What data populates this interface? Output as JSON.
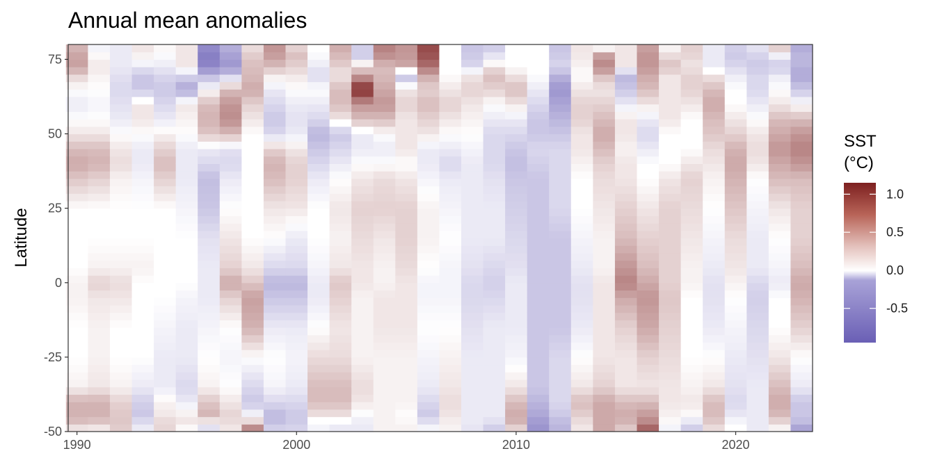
{
  "chart_data": {
    "type": "heatmap",
    "title": "Annual mean anomalies",
    "xlabel": "",
    "ylabel": "Latitude",
    "x_ticks": [
      1990,
      2000,
      2010,
      2020
    ],
    "x_tick_labels": [
      "1990",
      "2000",
      "2010",
      "2020"
    ],
    "y_ticks": [
      -50,
      -25,
      0,
      25,
      50,
      75
    ],
    "y_tick_labels": [
      "-50",
      "-25",
      "0",
      "25",
      "50",
      "75"
    ],
    "xlim": [
      1989.6,
      2023.5
    ],
    "ylim": [
      -50,
      80
    ],
    "years": [
      1990,
      1991,
      1992,
      1993,
      1994,
      1995,
      1996,
      1997,
      1998,
      1999,
      2000,
      2001,
      2002,
      2003,
      2004,
      2005,
      2006,
      2007,
      2008,
      2009,
      2010,
      2011,
      2012,
      2013,
      2014,
      2015,
      2016,
      2017,
      2018,
      2019,
      2020,
      2021,
      2022,
      2023
    ],
    "lat_knots": [
      -50,
      -47.5,
      -45,
      -40,
      -35,
      -25,
      -15,
      -5,
      0,
      5,
      15,
      25,
      35,
      40,
      45,
      50,
      55,
      60,
      65,
      70,
      72.5,
      77.5,
      80
    ],
    "anomaly_profiles": [
      [
        0.0,
        0.25,
        0.35,
        0.35,
        0.05,
        0.0,
        0.0,
        0.05,
        0.05,
        0.0,
        0.0,
        0.0,
        0.25,
        0.4,
        0.3,
        0.1,
        0.0,
        -0.1,
        0.0,
        0.2,
        0.45,
        0.4,
        0.3
      ],
      [
        0.0,
        0.2,
        0.35,
        0.35,
        0.1,
        0.05,
        0.05,
        0.1,
        0.2,
        0.05,
        0.0,
        0.0,
        0.2,
        0.35,
        0.3,
        0.1,
        0.0,
        -0.05,
        0.0,
        0.05,
        0.1,
        0.0,
        -0.1
      ],
      [
        0.2,
        0.25,
        0.25,
        0.2,
        0.05,
        0.0,
        0.0,
        0.1,
        0.15,
        0.05,
        0.0,
        0.0,
        0.05,
        0.15,
        0.1,
        0.0,
        -0.1,
        -0.15,
        -0.2,
        -0.15,
        -0.1,
        -0.1,
        -0.1
      ],
      [
        -0.1,
        -0.1,
        -0.3,
        -0.25,
        -0.1,
        0.0,
        0.0,
        0.0,
        0.0,
        0.05,
        0.0,
        0.0,
        -0.05,
        -0.1,
        -0.1,
        0.0,
        0.1,
        0.1,
        -0.3,
        -0.3,
        -0.1,
        0.1,
        0.1
      ],
      [
        0.15,
        0.2,
        0.1,
        0.05,
        -0.1,
        -0.1,
        -0.05,
        0.0,
        0.0,
        0.0,
        0.0,
        0.0,
        0.2,
        0.3,
        0.2,
        0.05,
        -0.1,
        -0.2,
        -0.3,
        -0.2,
        -0.1,
        0.0,
        0.05
      ],
      [
        -0.05,
        0.1,
        0.1,
        -0.1,
        -0.2,
        -0.1,
        -0.1,
        -0.05,
        0.0,
        0.0,
        0.0,
        -0.05,
        -0.1,
        -0.1,
        -0.1,
        0.0,
        0.05,
        0.1,
        -0.5,
        -0.2,
        0.1,
        0.1,
        0.1
      ],
      [
        -0.2,
        -0.1,
        0.35,
        0.25,
        0.05,
        0.0,
        -0.05,
        -0.1,
        -0.1,
        -0.1,
        -0.15,
        -0.3,
        -0.35,
        -0.2,
        -0.1,
        0.25,
        0.35,
        0.3,
        0.0,
        -0.4,
        -0.7,
        -0.75,
        -0.6
      ],
      [
        0.1,
        0.1,
        0.2,
        0.1,
        0.0,
        -0.05,
        0.0,
        0.2,
        0.4,
        0.2,
        0.1,
        0.0,
        -0.1,
        -0.2,
        -0.15,
        0.3,
        0.55,
        0.5,
        0.3,
        -0.3,
        -0.6,
        -0.5,
        -0.4
      ],
      [
        0.8,
        0.3,
        0.0,
        -0.3,
        -0.2,
        0.0,
        0.35,
        0.45,
        0.25,
        0.1,
        0.0,
        0.0,
        0.0,
        0.0,
        0.0,
        0.0,
        0.1,
        0.2,
        0.4,
        0.3,
        0.3,
        0.2,
        0.1
      ],
      [
        -0.2,
        -0.3,
        -0.4,
        -0.2,
        -0.05,
        0.0,
        -0.1,
        -0.3,
        -0.4,
        -0.2,
        0.0,
        0.1,
        0.3,
        0.35,
        0.2,
        -0.2,
        -0.3,
        -0.2,
        -0.1,
        0.1,
        0.3,
        0.5,
        0.5
      ],
      [
        -0.2,
        -0.25,
        -0.3,
        -0.2,
        -0.1,
        -0.05,
        -0.1,
        -0.3,
        -0.4,
        -0.2,
        -0.1,
        0.1,
        0.2,
        0.2,
        0.1,
        -0.1,
        -0.15,
        -0.1,
        0.0,
        0.1,
        0.2,
        0.3,
        0.1
      ],
      [
        0.0,
        -0.1,
        0.1,
        0.3,
        0.3,
        0.15,
        0.0,
        -0.1,
        -0.1,
        -0.05,
        0.0,
        0.0,
        -0.1,
        -0.2,
        -0.3,
        -0.4,
        -0.2,
        -0.1,
        0.0,
        -0.2,
        -0.1,
        0.0,
        0.0
      ],
      [
        -0.1,
        -0.1,
        0.1,
        0.3,
        0.3,
        0.15,
        0.1,
        0.2,
        0.25,
        0.1,
        0.05,
        0.1,
        0.0,
        -0.1,
        -0.2,
        -0.3,
        0.1,
        0.3,
        0.3,
        0.1,
        0.2,
        0.35,
        0.4
      ],
      [
        -0.1,
        -0.1,
        -0.05,
        0.1,
        0.15,
        0.05,
        0.05,
        0.05,
        0.1,
        0.1,
        0.15,
        0.2,
        0.1,
        0.0,
        -0.1,
        -0.1,
        0.3,
        0.5,
        1.1,
        0.4,
        0.2,
        -0.4,
        -0.1
      ],
      [
        0.05,
        0.05,
        0.05,
        0.05,
        0.05,
        0.05,
        0.1,
        0.1,
        0.05,
        0.05,
        0.1,
        0.2,
        0.15,
        0.0,
        -0.1,
        0.0,
        0.3,
        0.5,
        0.4,
        0.3,
        0.3,
        0.6,
        0.6
      ],
      [
        0.05,
        0.05,
        0.0,
        0.05,
        0.05,
        0.05,
        0.1,
        0.1,
        0.1,
        0.15,
        0.2,
        0.2,
        0.1,
        0.0,
        0.1,
        0.1,
        0.1,
        0.2,
        0.1,
        -0.4,
        0.4,
        0.5,
        0.5
      ],
      [
        -0.05,
        -0.05,
        -0.3,
        -0.2,
        -0.1,
        -0.05,
        0.0,
        -0.05,
        -0.05,
        0.0,
        0.05,
        0.05,
        -0.05,
        -0.1,
        -0.1,
        0.1,
        0.2,
        0.3,
        0.2,
        0.4,
        0.7,
        0.9,
        0.9
      ],
      [
        0.05,
        0.05,
        0.1,
        0.15,
        0.1,
        0.05,
        0.0,
        -0.05,
        -0.05,
        -0.05,
        0.0,
        -0.05,
        -0.1,
        -0.2,
        -0.1,
        0.0,
        0.1,
        0.2,
        0.1,
        0.0,
        0.0,
        0.0,
        0.0
      ],
      [
        -0.15,
        -0.1,
        -0.1,
        -0.1,
        -0.1,
        -0.1,
        -0.15,
        -0.2,
        -0.2,
        -0.15,
        -0.1,
        -0.1,
        -0.1,
        -0.1,
        -0.05,
        0.0,
        0.05,
        0.1,
        0.2,
        0.1,
        -0.2,
        -0.3,
        -0.3
      ],
      [
        -0.3,
        -0.2,
        -0.1,
        -0.1,
        -0.1,
        -0.1,
        -0.1,
        -0.2,
        -0.25,
        -0.2,
        -0.1,
        -0.1,
        -0.15,
        -0.2,
        -0.2,
        -0.2,
        -0.1,
        0.0,
        0.2,
        0.3,
        0.1,
        -0.2,
        -0.3
      ],
      [
        0.1,
        0.3,
        0.4,
        0.3,
        0.1,
        -0.05,
        -0.1,
        -0.1,
        -0.1,
        -0.15,
        -0.2,
        -0.25,
        -0.3,
        -0.35,
        -0.3,
        -0.2,
        -0.1,
        0.1,
        0.3,
        0.1,
        0.0,
        0.0,
        0.0
      ],
      [
        -0.6,
        -0.6,
        -0.5,
        -0.4,
        -0.3,
        -0.3,
        -0.3,
        -0.3,
        -0.3,
        -0.3,
        -0.3,
        -0.3,
        -0.3,
        -0.25,
        -0.2,
        -0.3,
        -0.3,
        -0.2,
        -0.1,
        0.0,
        0.0,
        0.0,
        0.0
      ],
      [
        -0.4,
        -0.4,
        -0.3,
        -0.2,
        -0.2,
        -0.2,
        -0.3,
        -0.3,
        -0.3,
        -0.3,
        -0.3,
        -0.2,
        -0.2,
        -0.2,
        -0.2,
        -0.3,
        -0.4,
        -0.5,
        -0.6,
        -0.4,
        -0.2,
        -0.3,
        -0.3
      ],
      [
        0.1,
        0.1,
        0.2,
        0.3,
        0.1,
        0.0,
        -0.1,
        -0.15,
        -0.15,
        -0.1,
        -0.05,
        0.0,
        0.0,
        0.05,
        0.1,
        0.1,
        0.2,
        0.2,
        0.1,
        0.0,
        0.05,
        0.1,
        0.1
      ],
      [
        0.4,
        0.4,
        0.4,
        0.4,
        0.2,
        0.1,
        0.1,
        0.1,
        0.1,
        0.05,
        0.05,
        0.1,
        0.15,
        0.2,
        0.3,
        0.4,
        0.3,
        0.2,
        0.1,
        0.3,
        0.6,
        0.4,
        -0.3
      ],
      [
        0.2,
        0.3,
        0.4,
        0.3,
        0.1,
        0.1,
        0.2,
        0.4,
        0.6,
        0.5,
        0.3,
        0.2,
        0.1,
        0.1,
        0.05,
        0.1,
        0.1,
        -0.1,
        -0.3,
        -0.4,
        0.1,
        0.1,
        0.1
      ],
      [
        0.9,
        0.6,
        0.5,
        0.3,
        0.1,
        0.2,
        0.4,
        0.5,
        0.4,
        0.3,
        0.2,
        0.1,
        0.0,
        0.0,
        -0.1,
        -0.2,
        -0.1,
        0.1,
        0.3,
        0.4,
        0.5,
        0.5,
        0.4
      ],
      [
        -0.1,
        0.0,
        0.05,
        0.1,
        0.1,
        0.15,
        0.2,
        0.25,
        0.2,
        0.2,
        0.2,
        0.2,
        0.1,
        0.0,
        0.0,
        0.0,
        0.1,
        0.1,
        0.1,
        0.1,
        0.3,
        0.1,
        0.0
      ],
      [
        -0.3,
        -0.2,
        0.0,
        0.1,
        0.05,
        0.0,
        0.0,
        0.0,
        0.05,
        0.05,
        0.1,
        0.15,
        0.2,
        0.1,
        0.0,
        0.0,
        0.0,
        0.1,
        0.2,
        0.2,
        0.1,
        0.2,
        0.2
      ],
      [
        0.1,
        0.2,
        0.3,
        0.3,
        0.1,
        0.0,
        -0.1,
        -0.15,
        -0.15,
        -0.1,
        -0.05,
        0.0,
        0.05,
        0.1,
        0.15,
        0.25,
        0.3,
        0.4,
        0.3,
        0.1,
        -0.1,
        -0.1,
        -0.1
      ],
      [
        0.0,
        0.0,
        -0.1,
        -0.2,
        -0.15,
        -0.1,
        -0.05,
        0.0,
        0.05,
        0.1,
        0.15,
        0.25,
        0.35,
        0.4,
        0.35,
        0.2,
        0.1,
        0.0,
        0.0,
        -0.1,
        -0.2,
        -0.3,
        -0.2
      ],
      [
        -0.1,
        -0.1,
        -0.1,
        -0.1,
        -0.1,
        -0.15,
        -0.2,
        -0.25,
        -0.2,
        -0.1,
        -0.1,
        -0.05,
        0.0,
        0.1,
        0.15,
        0.1,
        0.0,
        -0.1,
        -0.2,
        -0.2,
        -0.3,
        -0.2,
        -0.1
      ],
      [
        0.0,
        0.1,
        0.3,
        0.4,
        0.3,
        0.1,
        0.0,
        0.0,
        -0.1,
        -0.05,
        0.0,
        0.1,
        0.3,
        0.4,
        0.5,
        0.4,
        0.3,
        0.1,
        0.0,
        -0.1,
        -0.3,
        0.0,
        0.4
      ],
      [
        -0.6,
        -0.4,
        -0.3,
        -0.3,
        -0.1,
        0.0,
        0.2,
        0.35,
        0.4,
        0.3,
        0.2,
        0.2,
        0.3,
        0.5,
        0.6,
        0.5,
        0.3,
        0.0,
        -0.3,
        -0.5,
        -0.4,
        -0.4,
        -0.5
      ]
    ],
    "legend": {
      "title_line1": "SST",
      "title_line2": "(°C)",
      "ticks": [
        1.0,
        0.5,
        0.0,
        -0.5
      ],
      "tick_labels": [
        "1.0",
        "0.5",
        "0.0",
        "-0.5"
      ],
      "range": [
        -0.95,
        1.15
      ],
      "colors": {
        "low": "#6a5fb5",
        "mid": "#ffffff",
        "high": "#7d2020"
      }
    },
    "grid": false,
    "legend_placement": "right"
  }
}
